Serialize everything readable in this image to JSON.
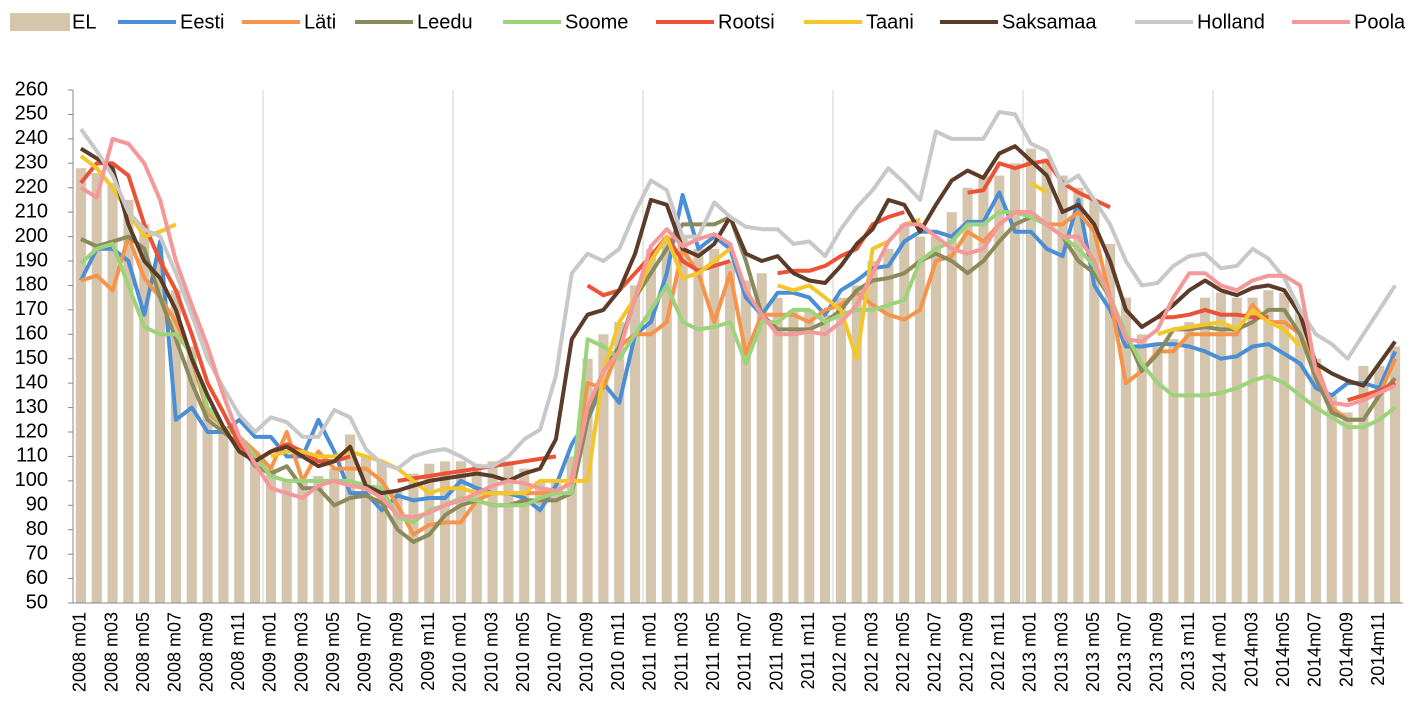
{
  "chart_data": {
    "type": "bar",
    "categories": [
      "2008 m01",
      null,
      "2008 m03",
      null,
      "2008 m05",
      null,
      "2008 m07",
      null,
      "2008 m09",
      null,
      "2008 m11",
      null,
      "2009 m01",
      null,
      "2009 m03",
      null,
      "2009 m05",
      null,
      "2009 m07",
      null,
      "2009 m09",
      null,
      "2009 m11",
      null,
      "2010 m01",
      null,
      "2010 m03",
      null,
      "2010 m05",
      null,
      "2010 m07",
      null,
      "2010 m09",
      null,
      "2010 m11",
      null,
      "2011 m01",
      null,
      "2011 m03",
      null,
      "2011 m05",
      null,
      "2011 m07",
      null,
      "2011 m09",
      null,
      "2011 m11",
      null,
      "2012 m01",
      null,
      "2012 m03",
      null,
      "2012 m05",
      null,
      "2012 m07",
      null,
      "2012 m09",
      null,
      "2012 m11",
      null,
      "2013 m01",
      null,
      "2013 m03",
      null,
      "2013 m05",
      null,
      "2013 m07",
      null,
      "2013 m09",
      null,
      "2013 m11",
      null,
      "2014 m01",
      null,
      "2014m03",
      null,
      "2014m05",
      null,
      "2014m07",
      null,
      "2014m09",
      null,
      "2014m11",
      null
    ],
    "ylim": [
      50,
      260
    ],
    "yticks": [
      50,
      60,
      70,
      80,
      90,
      100,
      110,
      120,
      130,
      140,
      150,
      160,
      170,
      180,
      190,
      200,
      210,
      220,
      230,
      240,
      250,
      260
    ],
    "grid": "vertical",
    "series": [
      {
        "name": "EL",
        "type": "bar",
        "color": "#d5c5ac",
        "values": [
          228,
          226,
          222,
          215,
          205,
          190,
          178,
          155,
          130,
          120,
          115,
          112,
          105,
          100,
          100,
          102,
          105,
          119,
          110,
          108,
          96,
          103,
          107,
          108,
          108,
          107,
          108,
          108,
          105,
          100,
          100,
          110,
          150,
          160,
          165,
          180,
          195,
          200,
          200,
          195,
          195,
          190,
          182,
          185,
          175,
          170,
          170,
          168,
          175,
          180,
          190,
          195,
          205,
          200,
          200,
          210,
          220,
          225,
          225,
          230,
          236,
          232,
          225,
          220,
          215,
          197,
          175,
          160,
          155,
          158,
          165,
          175,
          177,
          175,
          175,
          178,
          177,
          170,
          150,
          135,
          128,
          147,
          147,
          155
        ]
      },
      {
        "name": "Eesti",
        "type": "line",
        "color": "#4a8fd6",
        "values": [
          182,
          195,
          195,
          190,
          168,
          198,
          125,
          130,
          120,
          120,
          125,
          118,
          118,
          110,
          110,
          125,
          112,
          95,
          95,
          88,
          94,
          92,
          93,
          93,
          100,
          97,
          95,
          95,
          93,
          88,
          98,
          115,
          125,
          140,
          132,
          160,
          165,
          185,
          217,
          195,
          200,
          195,
          175,
          168,
          177,
          177,
          175,
          168,
          178,
          182,
          187,
          188,
          198,
          202,
          202,
          200,
          206,
          206,
          218,
          202,
          202,
          195,
          192,
          215,
          180,
          170,
          155,
          155,
          156,
          156,
          155,
          153,
          150,
          151,
          155,
          156,
          152,
          148,
          138,
          135,
          140,
          140,
          138,
          153
        ]
      },
      {
        "name": "Läti",
        "type": "line",
        "color": "#f5944a",
        "values": [
          182,
          184,
          178,
          200,
          183,
          175,
          165,
          150,
          128,
          122,
          118,
          112,
          105,
          120,
          100,
          112,
          105,
          105,
          105,
          100,
          90,
          78,
          82,
          83,
          83,
          92,
          95,
          95,
          95,
          95,
          95,
          100,
          140,
          138,
          155,
          160,
          160,
          165,
          195,
          185,
          165,
          185,
          152,
          168,
          168,
          168,
          165,
          170,
          172,
          177,
          172,
          168,
          166,
          170,
          190,
          192,
          202,
          198,
          205,
          210,
          210,
          205,
          205,
          210,
          202,
          175,
          140,
          145,
          153,
          153,
          160,
          160,
          160,
          160,
          172,
          165,
          165,
          160,
          148,
          130,
          125,
          125,
          135,
          150
        ]
      },
      {
        "name": "Leedu",
        "type": "line",
        "color": "#8a8a5c",
        "values": [
          199,
          196,
          198,
          200,
          195,
          175,
          158,
          140,
          125,
          120,
          115,
          106,
          103,
          106,
          97,
          97,
          90,
          93,
          94,
          91,
          80,
          75,
          78,
          86,
          90,
          92,
          90,
          90,
          92,
          92,
          92,
          95,
          125,
          145,
          155,
          175,
          185,
          195,
          205,
          205,
          205,
          208,
          190,
          168,
          162,
          162,
          162,
          165,
          170,
          178,
          182,
          183,
          185,
          190,
          193,
          190,
          185,
          190,
          198,
          205,
          208,
          205,
          200,
          190,
          185,
          175,
          160,
          145,
          152,
          162,
          162,
          163,
          162,
          162,
          165,
          170,
          170,
          160,
          142,
          128,
          125,
          125,
          135,
          142
        ]
      },
      {
        "name": "Soome",
        "type": "line",
        "color": "#9dd37a",
        "values": [
          189,
          195,
          197,
          180,
          163,
          160,
          160,
          152,
          130,
          122,
          118,
          110,
          102,
          100,
          100,
          100,
          100,
          100,
          98,
          97,
          85,
          83,
          88,
          90,
          93,
          92,
          90,
          90,
          90,
          93,
          95,
          95,
          158,
          155,
          150,
          160,
          170,
          180,
          165,
          162,
          163,
          165,
          148,
          165,
          165,
          170,
          170,
          165,
          168,
          170,
          170,
          172,
          174,
          190,
          195,
          198,
          205,
          205,
          210,
          210,
          208,
          205,
          200,
          195,
          188,
          175,
          160,
          148,
          140,
          135,
          135,
          135,
          136,
          138,
          141,
          143,
          140,
          135,
          130,
          126,
          122,
          122,
          125,
          130
        ]
      },
      {
        "name": "Rootsi",
        "type": "line",
        "color": "#ec5236",
        "values": [
          222,
          230,
          230,
          225,
          205,
          190,
          178,
          160,
          140,
          128,
          115,
          108,
          112,
          115,
          112,
          108,
          108,
          110,
          null,
          null,
          100,
          101,
          102,
          103,
          104,
          105,
          106,
          107,
          108,
          109,
          110,
          null,
          180,
          176,
          178,
          185,
          192,
          200,
          190,
          186,
          188,
          190,
          null,
          null,
          185,
          186,
          186,
          188,
          192,
          195,
          205,
          208,
          210,
          null,
          null,
          null,
          218,
          219,
          230,
          228,
          230,
          231,
          222,
          218,
          215,
          212,
          null,
          null,
          167,
          167,
          168,
          170,
          168,
          168,
          167,
          167,
          null,
          null,
          null,
          null,
          133,
          135,
          137,
          140
        ]
      },
      {
        "name": "Taani",
        "type": "line",
        "color": "#f3c72c",
        "values": [
          233,
          228,
          220,
          210,
          200,
          202,
          205,
          null,
          null,
          null,
          null,
          null,
          110,
          112,
          112,
          110,
          110,
          112,
          110,
          108,
          105,
          100,
          95,
          97,
          97,
          95,
          95,
          95,
          95,
          100,
          100,
          100,
          100,
          145,
          165,
          175,
          190,
          200,
          183,
          185,
          190,
          195,
          null,
          null,
          180,
          178,
          180,
          175,
          170,
          150,
          195,
          198,
          205,
          207,
          null,
          null,
          null,
          null,
          null,
          null,
          222,
          218,
          null,
          null,
          null,
          null,
          null,
          null,
          160,
          162,
          163,
          164,
          165,
          162,
          170,
          165,
          162,
          155,
          null,
          null,
          null,
          null,
          null,
          null
        ]
      },
      {
        "name": "Saksamaa",
        "type": "line",
        "color": "#5c3b28",
        "values": [
          236,
          232,
          228,
          205,
          190,
          183,
          170,
          150,
          135,
          122,
          112,
          108,
          112,
          114,
          110,
          106,
          108,
          114,
          98,
          95,
          96,
          98,
          100,
          101,
          102,
          103,
          102,
          100,
          103,
          105,
          117,
          158,
          168,
          170,
          178,
          193,
          215,
          213,
          195,
          192,
          197,
          208,
          193,
          190,
          192,
          185,
          182,
          181,
          188,
          197,
          203,
          215,
          213,
          202,
          213,
          223,
          227,
          224,
          234,
          237,
          231,
          225,
          210,
          213,
          205,
          190,
          170,
          163,
          167,
          172,
          178,
          182,
          178,
          176,
          179,
          180,
          178,
          168,
          148,
          144,
          141,
          139,
          148,
          157
        ]
      },
      {
        "name": "Holland",
        "type": "line",
        "color": "#c8c8c8",
        "values": [
          244,
          235,
          225,
          210,
          203,
          200,
          185,
          168,
          150,
          138,
          127,
          120,
          126,
          124,
          118,
          118,
          129,
          126,
          113,
          107,
          105,
          110,
          112,
          113,
          110,
          106,
          106,
          110,
          117,
          121,
          143,
          185,
          193,
          190,
          195,
          210,
          223,
          219,
          200,
          200,
          214,
          208,
          204,
          203,
          203,
          197,
          198,
          192,
          203,
          212,
          219,
          228,
          222,
          215,
          243,
          240,
          240,
          240,
          251,
          250,
          238,
          235,
          221,
          225,
          215,
          205,
          190,
          180,
          181,
          188,
          192,
          193,
          187,
          188,
          195,
          191,
          183,
          170,
          160,
          156,
          150,
          160,
          170,
          180
        ]
      },
      {
        "name": "Poola",
        "type": "line",
        "color": "#f4989a",
        "values": [
          220,
          216,
          240,
          238,
          230,
          215,
          190,
          172,
          155,
          135,
          118,
          107,
          97,
          95,
          93,
          98,
          100,
          98,
          97,
          93,
          86,
          85,
          87,
          90,
          92,
          95,
          98,
          100,
          99,
          97,
          96,
          99,
          130,
          145,
          153,
          175,
          196,
          203,
          196,
          199,
          201,
          197,
          178,
          168,
          160,
          160,
          161,
          160,
          165,
          172,
          185,
          198,
          205,
          205,
          200,
          195,
          193,
          195,
          205,
          210,
          210,
          205,
          200,
          200,
          190,
          175,
          158,
          157,
          162,
          175,
          185,
          185,
          180,
          178,
          182,
          184,
          184,
          180,
          145,
          132,
          131,
          133,
          136,
          139
        ]
      }
    ]
  }
}
